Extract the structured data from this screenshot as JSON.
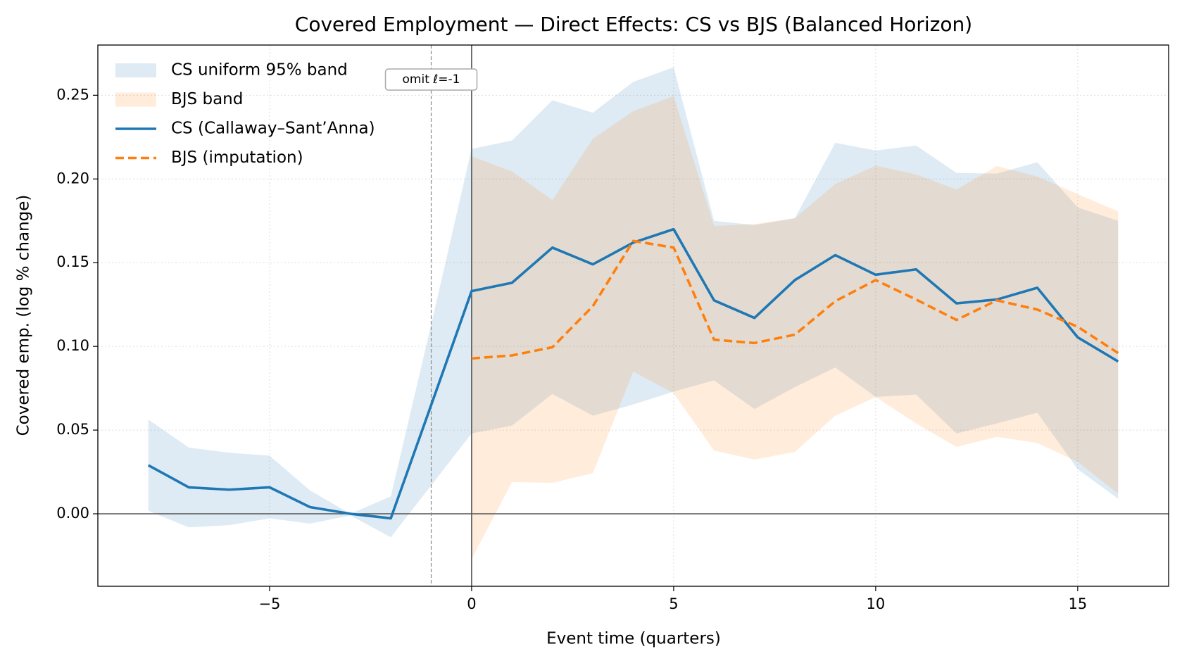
{
  "chart_data": {
    "type": "line",
    "title": "Covered Employment — Direct Effects: CS vs BJS (Balanced Horizon)",
    "x_label": "Event time (quarters)",
    "y_label": "Covered emp. (log % change)",
    "annotation": "omit ℓ=-1",
    "x": [
      -8,
      -7,
      -6,
      -5,
      -4,
      -3,
      -2,
      -1,
      0,
      1,
      2,
      3,
      4,
      5,
      6,
      7,
      8,
      9,
      10,
      11,
      12,
      13,
      14,
      15,
      16
    ],
    "series": [
      {
        "name": "CS (Callaway–Sant’Anna)",
        "color": "#1f77b4",
        "linestyle": "solid",
        "values": [
          0.029,
          0.0158,
          0.0144,
          0.0158,
          0.004,
          0.0,
          -0.0027,
          0.065,
          0.133,
          0.138,
          0.159,
          0.149,
          0.162,
          0.17,
          0.1275,
          0.117,
          0.1396,
          0.1545,
          0.1428,
          0.146,
          0.1257,
          0.128,
          0.135,
          0.1054,
          0.091
        ]
      },
      {
        "name": "BJS (imputation)",
        "color": "#ff7f0e",
        "linestyle": "dashed",
        "values": [
          null,
          null,
          null,
          null,
          null,
          null,
          null,
          null,
          0.0928,
          0.0946,
          0.0995,
          0.124,
          0.163,
          0.159,
          0.104,
          0.102,
          0.107,
          0.127,
          0.1396,
          0.128,
          0.1158,
          0.1275,
          0.122,
          0.1117,
          0.096
        ]
      }
    ],
    "bands": [
      {
        "name": "CS uniform 95% band",
        "color": "#1f77b4",
        "upper": [
          0.0563,
          0.0396,
          0.0365,
          0.0347,
          0.014,
          0.0,
          0.0104,
          0.113,
          0.218,
          0.223,
          0.247,
          0.2396,
          0.258,
          0.2667,
          0.175,
          0.1725,
          0.1766,
          0.2216,
          0.217,
          0.22,
          0.2036,
          0.2032,
          0.21,
          0.183,
          0.175
        ],
        "lower": [
          0.0018,
          -0.0081,
          -0.0068,
          -0.0027,
          -0.0059,
          -0.001,
          -0.014,
          0.017,
          0.048,
          0.0527,
          0.0716,
          0.0586,
          0.0653,
          0.073,
          0.0797,
          0.0626,
          0.0757,
          0.0874,
          0.0698,
          0.0712,
          0.048,
          0.054,
          0.0604,
          0.0266,
          0.009
        ]
      },
      {
        "name": "BJS band",
        "color": "#ff7f0e",
        "upper": [
          null,
          null,
          null,
          null,
          null,
          null,
          null,
          null,
          0.2135,
          0.2045,
          0.1874,
          0.224,
          0.2405,
          0.2495,
          0.172,
          0.173,
          0.1766,
          0.197,
          0.208,
          0.2027,
          0.1937,
          0.2077,
          0.2014,
          0.191,
          0.1806
        ],
        "lower": [
          null,
          null,
          null,
          null,
          null,
          null,
          null,
          null,
          -0.027,
          0.019,
          0.0185,
          0.0243,
          0.085,
          0.072,
          0.0378,
          0.0324,
          0.037,
          0.0586,
          0.0698,
          0.054,
          0.04,
          0.046,
          0.0423,
          0.031,
          0.012
        ]
      }
    ],
    "vlines": [
      {
        "x": -1,
        "style": "dashed"
      },
      {
        "x": 0,
        "style": "solid"
      }
    ],
    "hlines": [
      0
    ],
    "xlim": [
      -9.25,
      17.25
    ],
    "ylim": [
      -0.0433,
      0.28
    ],
    "xticks": [
      {
        "value": -5,
        "label": "−5"
      },
      0,
      5,
      10,
      15
    ],
    "yticks": [
      {
        "value": 0,
        "label": "0.00"
      },
      {
        "value": 0.05,
        "label": "0.05"
      },
      {
        "value": 0.1,
        "label": "0.10"
      },
      {
        "value": 0.15,
        "label": "0.15"
      },
      {
        "value": 0.2,
        "label": "0.20"
      },
      {
        "value": 0.25,
        "label": "0.25"
      }
    ],
    "grid": true,
    "legend": "upper left"
  }
}
